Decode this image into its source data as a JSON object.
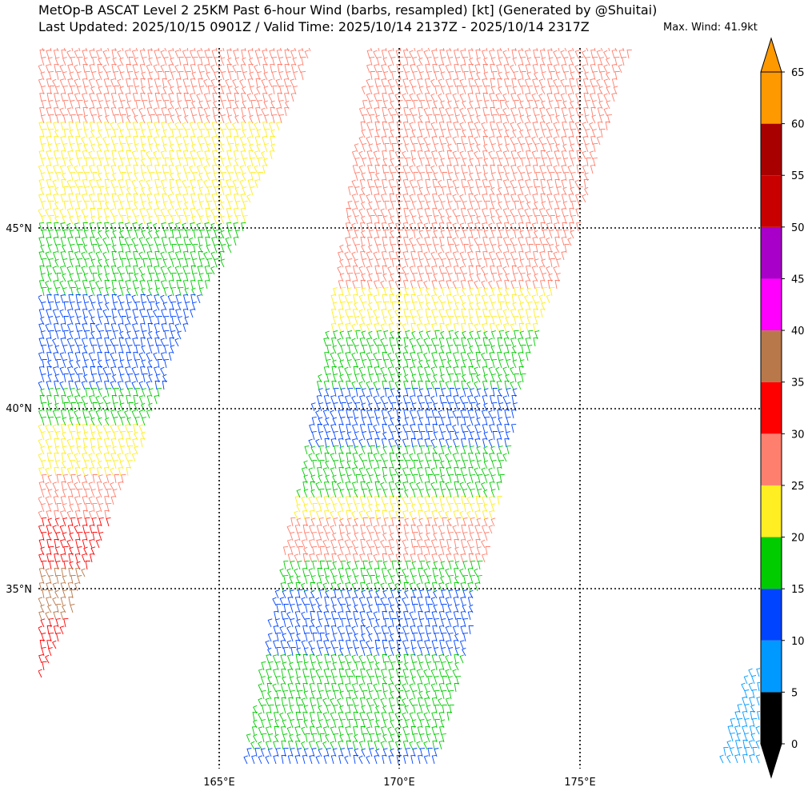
{
  "title": {
    "line1": "MetOp-B ASCAT Level 2 25KM Past 6-hour Wind (barbs, resampled) [kt] (Generated by @Shuitai)",
    "line2": "Last Updated: 2025/10/15 0901Z / Valid Time: 2025/10/14 2137Z - 2025/10/14 2317Z",
    "max_wind": "Max. Wind: 41.9kt"
  },
  "map": {
    "lat_labels": [
      "45°N",
      "40°N",
      "35°N"
    ],
    "lon_labels": [
      "165°E",
      "170°E",
      "175°E"
    ],
    "lat_values": [
      45,
      40,
      35
    ],
    "lon_values": [
      165,
      170,
      175
    ],
    "extent": {
      "lon_min": 160,
      "lon_max": 180,
      "lat_min": 30,
      "lat_max": 50
    }
  },
  "colorbar": {
    "tick_labels": [
      "0",
      "5",
      "10",
      "15",
      "20",
      "25",
      "30",
      "35",
      "40",
      "45",
      "50",
      "55",
      "60",
      "65"
    ],
    "bins": [
      {
        "from": 0,
        "to": 5,
        "color": "#000000"
      },
      {
        "from": 5,
        "to": 10,
        "color": "#0099ff"
      },
      {
        "from": 10,
        "to": 15,
        "color": "#0044ff"
      },
      {
        "from": 15,
        "to": 20,
        "color": "#00cc00"
      },
      {
        "from": 20,
        "to": 25,
        "color": "#ffee22"
      },
      {
        "from": 25,
        "to": 30,
        "color": "#ff7f6e"
      },
      {
        "from": 30,
        "to": 35,
        "color": "#ff0000"
      },
      {
        "from": 35,
        "to": 40,
        "color": "#b8784a"
      },
      {
        "from": 40,
        "to": 45,
        "color": "#ff00ff"
      },
      {
        "from": 45,
        "to": 50,
        "color": "#a800c8"
      },
      {
        "from": 50,
        "to": 55,
        "color": "#c80000"
      },
      {
        "from": 55,
        "to": 60,
        "color": "#a80000"
      },
      {
        "from": 60,
        "to": 65,
        "color": "#ff9900"
      }
    ],
    "under_color": "#000000",
    "over_color": "#ff9900"
  },
  "swaths": [
    {
      "bands": [
        {
          "lat_min": 47.8,
          "lat_max": 50.0,
          "speed": 27
        },
        {
          "lat_min": 46.3,
          "lat_max": 47.8,
          "speed": 23
        },
        {
          "lat_min": 45.0,
          "lat_max": 46.3,
          "speed": 22
        },
        {
          "lat_min": 43.0,
          "lat_max": 45.0,
          "speed": 17
        },
        {
          "lat_min": 40.5,
          "lat_max": 43.0,
          "speed": 12
        },
        {
          "lat_min": 39.5,
          "lat_max": 40.5,
          "speed": 17
        },
        {
          "lat_min": 38.0,
          "lat_max": 39.5,
          "speed": 22
        },
        {
          "lat_min": 36.8,
          "lat_max": 38.0,
          "speed": 27
        },
        {
          "lat_min": 35.5,
          "lat_max": 36.8,
          "speed": 32
        },
        {
          "lat_min": 34.0,
          "lat_max": 35.5,
          "speed": 37
        },
        {
          "lat_min": 32.0,
          "lat_max": 34.0,
          "speed": 32
        }
      ]
    },
    {
      "bands": [
        {
          "lat_min": 43.3,
          "lat_max": 50.0,
          "speed": 27
        },
        {
          "lat_min": 42.0,
          "lat_max": 43.3,
          "speed": 22
        },
        {
          "lat_min": 40.5,
          "lat_max": 42.0,
          "speed": 17
        },
        {
          "lat_min": 38.8,
          "lat_max": 40.5,
          "speed": 12
        },
        {
          "lat_min": 37.5,
          "lat_max": 38.8,
          "speed": 17
        },
        {
          "lat_min": 36.8,
          "lat_max": 37.5,
          "speed": 22
        },
        {
          "lat_min": 35.7,
          "lat_max": 36.8,
          "speed": 27
        },
        {
          "lat_min": 34.8,
          "lat_max": 35.7,
          "speed": 17
        },
        {
          "lat_min": 33.0,
          "lat_max": 34.8,
          "speed": 12
        },
        {
          "lat_min": 30.5,
          "lat_max": 33.0,
          "speed": 17
        },
        {
          "lat_min": 30.0,
          "lat_max": 30.5,
          "speed": 12
        }
      ]
    },
    {
      "bands": [
        {
          "lat_min": 30.0,
          "lat_max": 32.0,
          "speed": 8
        }
      ]
    }
  ]
}
